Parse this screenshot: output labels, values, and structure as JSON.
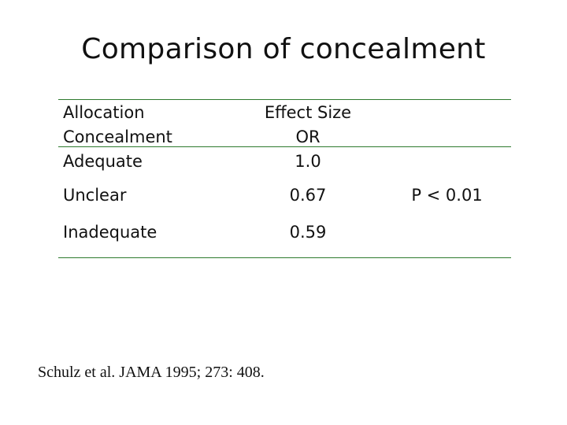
{
  "slide": {
    "title": "Comparison of concealment"
  },
  "table": {
    "header": {
      "label_lines": [
        "Allocation",
        "Concealment",
        "Adequate"
      ],
      "effect_lines": [
        "Effect Size",
        "OR",
        "1.0"
      ]
    },
    "rows": [
      {
        "label": "Unclear",
        "effect": "0.67",
        "p_value": "P < 0.01"
      },
      {
        "label": "Inadequate",
        "effect": "0.59",
        "p_value": ""
      }
    ],
    "rule_color": "#2d7a2d"
  },
  "footer": {
    "source": "Schulz et al.  JAMA 1995; 273: 408."
  }
}
